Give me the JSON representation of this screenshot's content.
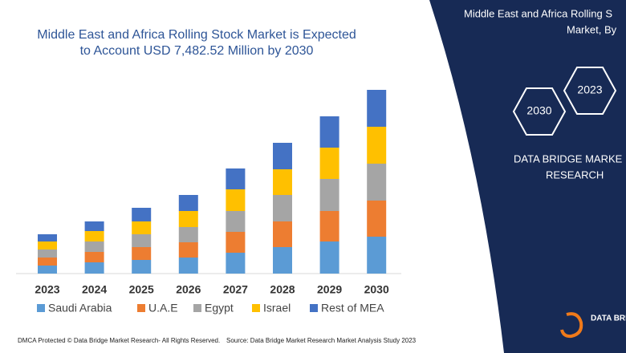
{
  "chart_data": {
    "type": "stacked_bar",
    "title": [
      "Middle East and Africa Rolling Stock Market is Expected",
      "to Account USD 7,482.52 Million by 2030"
    ],
    "categories": [
      "2023",
      "2024",
      "2025",
      "2026",
      "2027",
      "2028",
      "2029",
      "2030"
    ],
    "series": [
      {
        "name": "Saudi Arabia",
        "color": "#5b9bd5",
        "values": [
          10,
          14,
          17,
          20,
          26,
          33,
          40,
          46
        ]
      },
      {
        "name": "U.A.E",
        "color": "#ed7d31",
        "values": [
          10,
          13,
          16,
          19,
          26,
          32,
          38,
          45
        ]
      },
      {
        "name": "Egypt",
        "color": "#a5a5a5",
        "values": [
          10,
          13,
          16,
          19,
          26,
          33,
          40,
          46
        ]
      },
      {
        "name": "Israel",
        "color": "#ffc000",
        "values": [
          10,
          13,
          16,
          20,
          27,
          32,
          39,
          46
        ]
      },
      {
        "name": "Rest of MEA",
        "color": "#4472c4",
        "values": [
          9,
          12,
          17,
          20,
          26,
          33,
          39,
          46
        ]
      }
    ]
  },
  "side_panel": {
    "heading": [
      "Middle East and Africa Rolling S",
      "Market, By"
    ],
    "hexagons": [
      "2023",
      "2030"
    ],
    "brand": [
      "DATA BRIDGE MARKE",
      "RESEARCH"
    ],
    "logo": "DATA BRI"
  },
  "footer": {
    "left": "DMCA Protected © Data Bridge Market Research- All Rights Reserved.",
    "right": "Source: Data Bridge Market Research  Market Analysis Study 2023"
  }
}
